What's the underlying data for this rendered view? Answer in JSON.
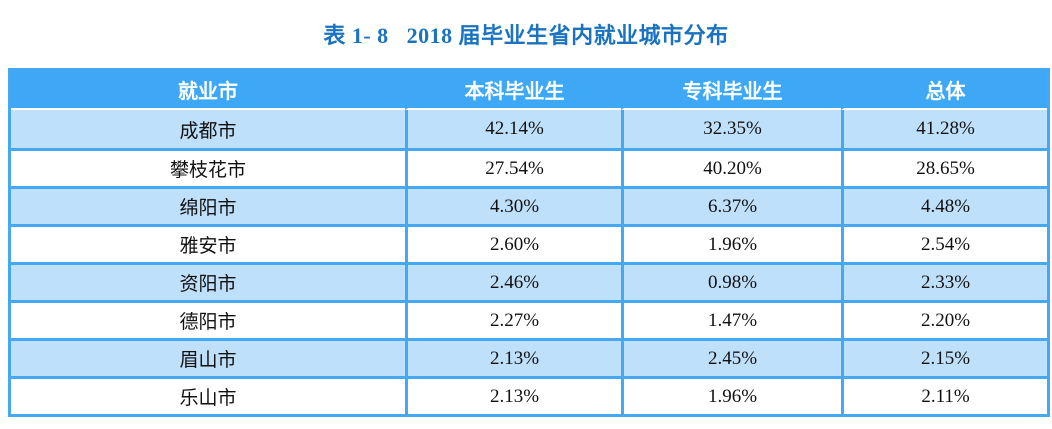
{
  "title": {
    "label": "表 1- 8",
    "text": "2018 届毕业生省内就业城市分布"
  },
  "table": {
    "headers": [
      "就业市",
      "本科毕业生",
      "专科毕业生",
      "总体"
    ],
    "rows": [
      [
        "成都市",
        "42.14%",
        "32.35%",
        "41.28%"
      ],
      [
        "攀枝花市",
        "27.54%",
        "40.20%",
        "28.65%"
      ],
      [
        "绵阳市",
        "4.30%",
        "6.37%",
        "4.48%"
      ],
      [
        "雅安市",
        "2.60%",
        "1.96%",
        "2.54%"
      ],
      [
        "资阳市",
        "2.46%",
        "0.98%",
        "2.33%"
      ],
      [
        "德阳市",
        "2.27%",
        "1.47%",
        "2.20%"
      ],
      [
        "眉山市",
        "2.13%",
        "2.45%",
        "2.15%"
      ],
      [
        "乐山市",
        "2.13%",
        "1.96%",
        "2.11%"
      ]
    ]
  },
  "colors": {
    "header_bg": "#3ea8f7",
    "grid_border": "#44a9f2",
    "row_alt_bg": "#bfe0fa",
    "title_text": "#1a73c0",
    "header_text": "#ffffff",
    "cell_text": "#111111"
  },
  "chart_data": {
    "type": "table",
    "title": "表 1- 8 2018 届毕业生省内就业城市分布",
    "columns": [
      "就业市",
      "本科毕业生",
      "专科毕业生",
      "总体"
    ],
    "rows": [
      {
        "就业市": "成都市",
        "本科毕业生": "42.14%",
        "专科毕业生": "32.35%",
        "总体": "41.28%"
      },
      {
        "就业市": "攀枝花市",
        "本科毕业生": "27.54%",
        "专科毕业生": "40.20%",
        "总体": "28.65%"
      },
      {
        "就业市": "绵阳市",
        "本科毕业生": "4.30%",
        "专科毕业生": "6.37%",
        "总体": "4.48%"
      },
      {
        "就业市": "雅安市",
        "本科毕业生": "2.60%",
        "专科毕业生": "1.96%",
        "总体": "2.54%"
      },
      {
        "就业市": "资阳市",
        "本科毕业生": "2.46%",
        "专科毕业生": "0.98%",
        "总体": "2.33%"
      },
      {
        "就业市": "德阳市",
        "本科毕业生": "2.27%",
        "专科毕业生": "1.47%",
        "总体": "2.20%"
      },
      {
        "就业市": "眉山市",
        "本科毕业生": "2.13%",
        "专科毕业生": "2.45%",
        "总体": "2.15%"
      },
      {
        "就业市": "乐山市",
        "本科毕业生": "2.13%",
        "专科毕业生": "1.96%",
        "总体": "2.11%"
      }
    ]
  }
}
